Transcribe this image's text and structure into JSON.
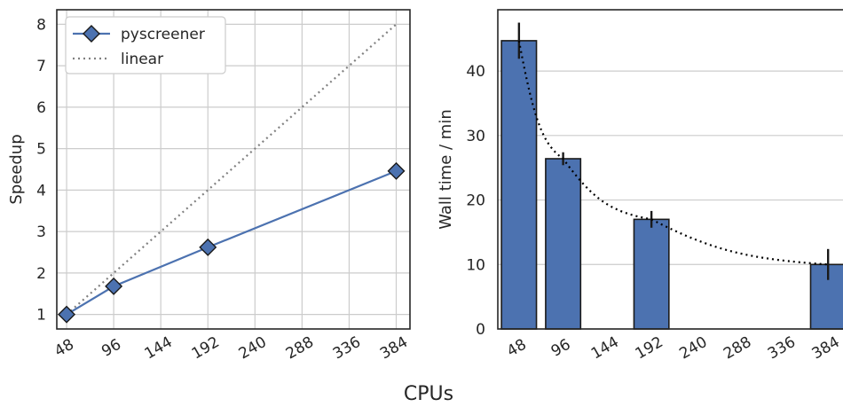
{
  "chart_data": [
    {
      "type": "line",
      "x": [
        48,
        96,
        192,
        384
      ],
      "series": [
        {
          "name": "pyscreener",
          "values": [
            1.0,
            1.68,
            2.62,
            4.46
          ],
          "color": "#4c72b0",
          "marker": "diamond"
        },
        {
          "name": "linear",
          "values": [
            1,
            2,
            4,
            8
          ],
          "color": "#808080",
          "style": "dotted"
        }
      ],
      "xticks": [
        48,
        96,
        144,
        192,
        240,
        288,
        336,
        384
      ],
      "yticks": [
        1,
        2,
        3,
        4,
        5,
        6,
        7,
        8
      ],
      "xlim": [
        38,
        398
      ],
      "ylim": [
        0.65,
        8.35
      ],
      "xlabel": "",
      "ylabel": "Speedup",
      "grid": true,
      "legend": "top-left"
    },
    {
      "type": "bar",
      "x": [
        48,
        96,
        192,
        384
      ],
      "values": [
        44.7,
        26.4,
        17.0,
        10.0
      ],
      "errors": [
        2.8,
        1.0,
        1.3,
        2.4
      ],
      "trend": {
        "x": [
          48,
          96,
          192,
          384
        ],
        "values": [
          44.7,
          26.4,
          17.0,
          10.0
        ],
        "style": "dotted",
        "color": "#000000"
      },
      "color": "#4c72b0",
      "xticks": [
        48,
        96,
        144,
        192,
        240,
        288,
        336,
        384
      ],
      "yticks": [
        0,
        10,
        20,
        30,
        40
      ],
      "xlim": [
        25,
        406
      ],
      "ylim": [
        0,
        49.5
      ],
      "xlabel": "",
      "ylabel": "Wall time / min",
      "grid": "y"
    }
  ],
  "figure": {
    "shared_xlabel": "CPUs"
  }
}
